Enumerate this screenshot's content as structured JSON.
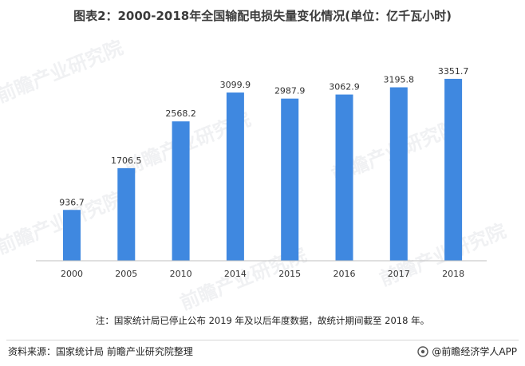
{
  "title": "图表2：2000-2018年全国输配电损失量变化情况(单位：亿千瓦小时)",
  "note": "注：国家统计局已停止公布 2019 年及以后年度数据，故统计期间截至 2018 年。",
  "footer": {
    "source": "资料来源：国家统计局 前瞻产业研究院整理",
    "brand": "@前瞻经济学人APP"
  },
  "watermark": "前瞻产业研究院",
  "colors": {
    "bar": "#3f88e0",
    "axis": "#bfbfbf"
  },
  "chart_data": {
    "type": "bar",
    "title": "图表2：2000-2018年全国输配电损失量变化情况(单位：亿千瓦小时)",
    "categories": [
      "2000",
      "2005",
      "2010",
      "2014",
      "2015",
      "2016",
      "2017",
      "2018"
    ],
    "values": [
      936.7,
      1706.5,
      2568.2,
      3099.9,
      2987.9,
      3062.9,
      3195.8,
      3351.7
    ],
    "value_labels": [
      "936.7",
      "1706.5",
      "2568.2",
      "3099.9",
      "2987.9",
      "3062.9",
      "3195.8",
      "3351.7"
    ],
    "xlabel": "",
    "ylabel": "",
    "ylim": [
      0,
      3600
    ],
    "grid": false,
    "legend": "none"
  }
}
